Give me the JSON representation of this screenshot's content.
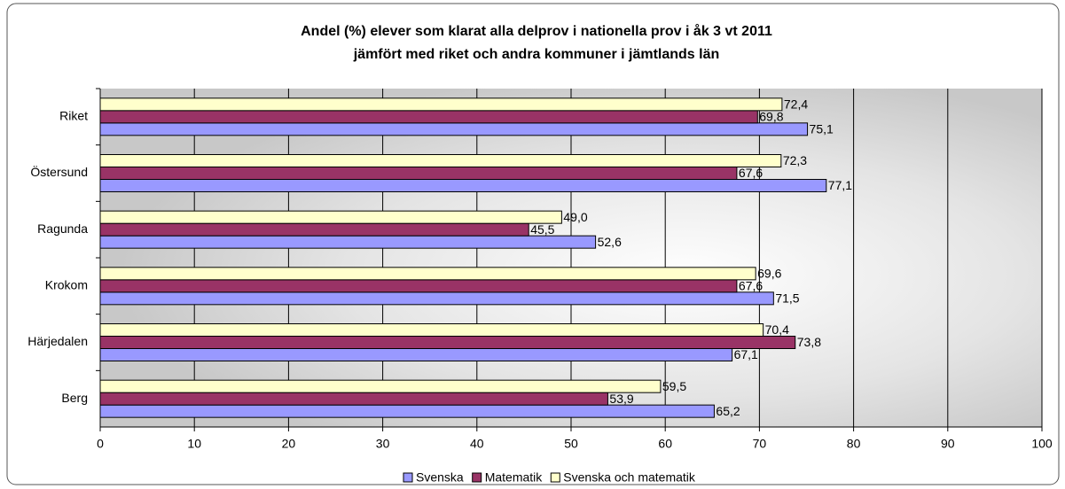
{
  "chart_data": {
    "type": "barh",
    "title": [
      "Andel (%) elever som klarat alla delprov i nationella prov i åk 3 vt 2011",
      "jämfört med riket och andra kommuner i jämtlands län"
    ],
    "categories": [
      "Riket",
      "Östersund",
      "Ragunda",
      "Krokom",
      "Härjedalen",
      "Berg"
    ],
    "series": [
      {
        "name": "Svenska",
        "color": "#9999ff",
        "values": [
          75.1,
          77.1,
          52.6,
          71.5,
          67.1,
          65.2
        ],
        "value_labels": [
          "75,1",
          "77,1",
          "52,6",
          "71,5",
          "67,1",
          "65,2"
        ]
      },
      {
        "name": "Matematik",
        "color": "#993366",
        "values": [
          69.8,
          67.6,
          45.5,
          67.6,
          73.8,
          53.9
        ],
        "value_labels": [
          "69,8",
          "67,6",
          "45,5",
          "67,6",
          "73,8",
          "53,9"
        ]
      },
      {
        "name": "Svenska och matematik",
        "color": "#ffffcc",
        "values": [
          72.4,
          72.3,
          49.0,
          69.6,
          70.4,
          59.5
        ],
        "value_labels": [
          "72,4",
          "72,3",
          "49,0",
          "69,6",
          "70,4",
          "59,5"
        ]
      }
    ],
    "xlim": [
      0,
      100
    ],
    "xticks": [
      0,
      10,
      20,
      30,
      40,
      50,
      60,
      70,
      80,
      90,
      100
    ],
    "grid": true,
    "legend": "bottom"
  }
}
